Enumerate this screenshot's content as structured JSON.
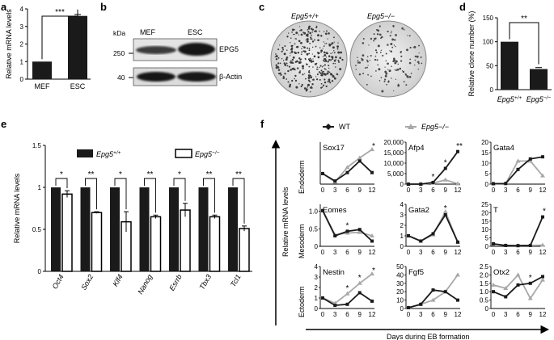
{
  "panels": {
    "a": "a",
    "b": "b",
    "c": "c",
    "d": "d",
    "e": "e",
    "f": "f"
  },
  "blot": {
    "kda_label": "kDa",
    "markers": [
      "250",
      "40"
    ],
    "lanes": [
      "MEF",
      "ESC"
    ],
    "bands": [
      "EPG5",
      "β-Actin"
    ]
  },
  "colony": {
    "left_label": "Epg5+/+",
    "right_label": "Epg5−/−"
  },
  "legend_f": {
    "wt": "WT",
    "ko": "Epg5−/−"
  },
  "f_axes": {
    "vertical_label": "Relative mRNA levels",
    "horizontal_label": "Days during EB formation",
    "rows": [
      "Endoderm",
      "Mesoderm",
      "Ectoderm"
    ]
  },
  "colors": {
    "wt": "#1a1a1a",
    "ko": "#a8a8a8",
    "bar": "#1a1a1a"
  },
  "chart_data": [
    {
      "panel": "a",
      "type": "bar",
      "categories": [
        "MEF",
        "ESC"
      ],
      "values": [
        1.0,
        3.6
      ],
      "errors": [
        0,
        0.08
      ],
      "ylabel": "Relative mRNA levels",
      "ylim": [
        0,
        4
      ],
      "yticks": [
        "0",
        "1",
        "2",
        "3",
        "4"
      ],
      "significance": "***"
    },
    {
      "panel": "d",
      "type": "bar",
      "categories": [
        "Epg5+/+",
        "Epg5−/−"
      ],
      "values": [
        100,
        43
      ],
      "errors": [
        0,
        3
      ],
      "ylabel": "Relative clone number (%)",
      "ylim": [
        0,
        150
      ],
      "yticks": [
        "0",
        "50",
        "100",
        "150"
      ],
      "significance": "**"
    },
    {
      "panel": "e",
      "type": "bar",
      "categories": [
        "Oct4",
        "Sox2",
        "Klf4",
        "Nanog",
        "Esrrb",
        "Tbx3",
        "Tcl1"
      ],
      "series": [
        {
          "name": "Epg5+/+",
          "values": [
            1,
            1,
            1,
            1,
            1,
            1,
            1
          ],
          "errors": [
            0,
            0,
            0,
            0,
            0,
            0,
            0
          ]
        },
        {
          "name": "Epg5−/−",
          "values": [
            0.92,
            0.7,
            0.59,
            0.65,
            0.73,
            0.65,
            0.51
          ],
          "errors": [
            0.04,
            0.01,
            0.12,
            0.02,
            0.08,
            0.02,
            0.03
          ]
        }
      ],
      "significance": [
        "*",
        "**",
        "*",
        "**",
        "*",
        "**",
        "**"
      ],
      "ylabel": "Relative mRNA levels",
      "ylim": [
        0,
        1.5
      ],
      "yticks": [
        "0",
        "0.5",
        "1",
        "1.5"
      ],
      "legend": "top"
    },
    {
      "panel": "f",
      "type": "line",
      "x": [
        0,
        3,
        6,
        9,
        12
      ],
      "xticks": [
        "0",
        "3",
        "6",
        "9",
        "12"
      ],
      "subplots": [
        {
          "gene": "Sox17",
          "ylim": [
            0,
            4
          ],
          "yticks": [],
          "wt": [
            1.0,
            0.3,
            1.1,
            2.2,
            1.1
          ],
          "ko": [
            1.0,
            0.2,
            1.6,
            2.5,
            3.3
          ],
          "stars": [
            {
              "x": 12,
              "text": "*"
            }
          ]
        },
        {
          "gene": "Afp4",
          "ylim": [
            0,
            20000
          ],
          "yticks": [
            "0",
            "5,000",
            "10,000",
            "15,000",
            "20,000"
          ],
          "wt": [
            0,
            0,
            800,
            7500,
            15500
          ],
          "ko": [
            0,
            0,
            500,
            2000,
            200
          ],
          "stars": [
            {
              "x": 6,
              "text": "*"
            },
            {
              "x": 9,
              "text": "*"
            },
            {
              "x": 12,
              "text": "**"
            }
          ]
        },
        {
          "gene": "Gata4",
          "ylim": [
            0,
            20
          ],
          "yticks": [
            "0",
            "5",
            "10",
            "15",
            "20"
          ],
          "wt": [
            0.2,
            0.3,
            7,
            12,
            13
          ],
          "ko": [
            0.2,
            0.3,
            11,
            11,
            4
          ],
          "stars": []
        },
        {
          "gene": "Eomes",
          "ylim": [
            0,
            1.2
          ],
          "yticks": [
            "0",
            "0.5",
            "1.0"
          ],
          "wt": [
            1.02,
            0.3,
            0.43,
            0.48,
            0.15
          ],
          "ko": [
            1.02,
            0.33,
            0.38,
            0.4,
            0.3
          ],
          "stars": [
            {
              "x": 6,
              "text": "*"
            }
          ]
        },
        {
          "gene": "Gata2",
          "ylim": [
            0,
            4
          ],
          "yticks": [
            "0",
            "1",
            "2",
            "3",
            "4"
          ],
          "wt": [
            1.0,
            0.5,
            1.2,
            3.0,
            0.4
          ],
          "ko": [
            1.0,
            0.5,
            1.1,
            3.3,
            0.4
          ],
          "stars": [
            {
              "x": 9,
              "text": "*"
            }
          ]
        },
        {
          "gene": "T",
          "ylim": [
            0,
            25
          ],
          "yticks": [
            "0",
            "5",
            "10",
            "15",
            "20",
            "25"
          ],
          "wt": [
            1.5,
            0.5,
            0.4,
            0.5,
            17.5
          ],
          "ko": [
            1.5,
            0.5,
            0.4,
            0.5,
            0.7
          ],
          "stars": [
            {
              "x": 12,
              "text": "*"
            }
          ]
        },
        {
          "gene": "Nestin",
          "ylim": [
            0,
            4
          ],
          "yticks": [
            "0",
            "1",
            "2",
            "3",
            "4"
          ],
          "wt": [
            1.0,
            0.3,
            0.4,
            1.5,
            0.7
          ],
          "ko": [
            1.0,
            0.5,
            1.4,
            2.4,
            3.3
          ],
          "stars": [
            {
              "x": 6,
              "text": "*"
            },
            {
              "x": 9,
              "text": "*"
            },
            {
              "x": 12,
              "text": "*"
            }
          ]
        },
        {
          "gene": "Fgf5",
          "ylim": [
            0,
            50
          ],
          "yticks": [
            "0",
            "10",
            "20",
            "30",
            "40",
            "50"
          ],
          "wt": [
            1,
            5,
            22,
            20,
            10
          ],
          "ko": [
            1,
            5,
            10,
            20,
            40
          ],
          "stars": []
        },
        {
          "gene": "Otx2",
          "ylim": [
            0,
            2.5
          ],
          "yticks": [
            "0",
            "0.5",
            "1.0",
            "1.5",
            "2.0",
            "2.5"
          ],
          "wt": [
            1.0,
            0.7,
            1.4,
            1.5,
            1.9
          ],
          "ko": [
            1.4,
            1.2,
            2.0,
            0.6,
            1.7
          ],
          "stars": [
            {
              "x": 9,
              "text": "*"
            }
          ]
        }
      ]
    }
  ]
}
